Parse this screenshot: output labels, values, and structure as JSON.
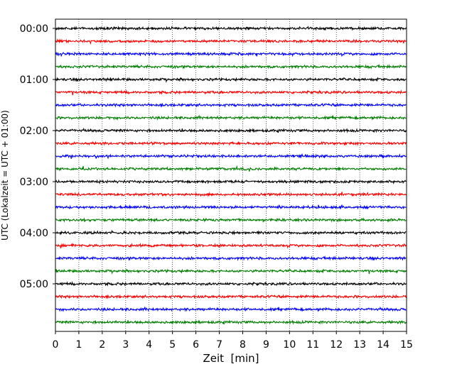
{
  "chart_data": {
    "type": "line",
    "title": "",
    "xlabel": "Zeit  [min]",
    "ylabel": "UTC (Lokalzeit = UTC + 01:00)",
    "xlim": [
      0,
      15
    ],
    "x_ticks": [
      "0",
      "1",
      "2",
      "3",
      "4",
      "5",
      "6",
      "7",
      "8",
      "9",
      "10",
      "11",
      "12",
      "13",
      "14",
      "15"
    ],
    "y_ticks": [
      "00:00",
      "01:00",
      "02:00",
      "03:00",
      "04:00",
      "05:00"
    ],
    "grid": "vertical dotted at each minute",
    "trace_interval_minutes": 15,
    "trace_count": 24,
    "trace_start_times": [
      "00:00",
      "00:15",
      "00:30",
      "00:45",
      "01:00",
      "01:15",
      "01:30",
      "01:45",
      "02:00",
      "02:15",
      "02:30",
      "02:45",
      "03:00",
      "03:15",
      "03:30",
      "03:45",
      "04:00",
      "04:15",
      "04:30",
      "04:45",
      "05:00",
      "05:15",
      "05:30",
      "05:45"
    ],
    "trace_color_cycle": [
      "#000000",
      "#ff0000",
      "#0000ff",
      "#007f00"
    ],
    "trace_signal": "low-amplitude background noise"
  }
}
